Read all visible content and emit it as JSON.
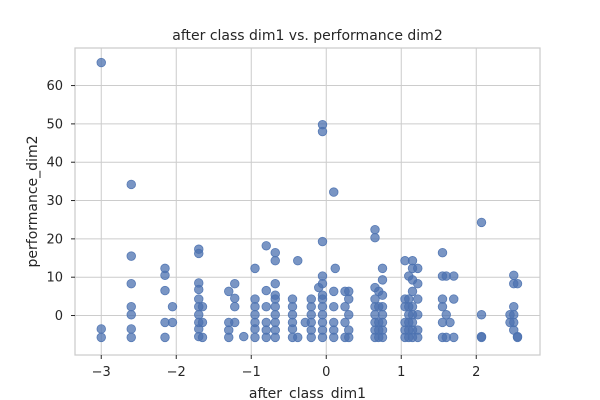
{
  "chart_data": {
    "type": "scatter",
    "title": "after class dim1 vs. performance dim2",
    "xlabel": "after_class_dim1",
    "ylabel": "performance_dim2",
    "xlim": [
      -3.35,
      2.85
    ],
    "ylim": [
      -10.3,
      69.8
    ],
    "xticks": [
      -3,
      -2,
      -1,
      0,
      1,
      2
    ],
    "yticks": [
      0,
      10,
      20,
      30,
      40,
      50,
      60
    ],
    "grid": true,
    "color": "#4c72b0",
    "points": [
      [
        -3.0,
        66
      ],
      [
        -3.0,
        -3.5
      ],
      [
        -3.0,
        -5.7
      ],
      [
        -2.6,
        34.2
      ],
      [
        -2.6,
        15.5
      ],
      [
        -2.6,
        8.3
      ],
      [
        -2.6,
        2.3
      ],
      [
        -2.6,
        0.2
      ],
      [
        -2.6,
        -3.5
      ],
      [
        -2.6,
        -5.7
      ],
      [
        -2.15,
        12.3
      ],
      [
        -2.15,
        10.5
      ],
      [
        -2.15,
        6.5
      ],
      [
        -2.15,
        -1.8
      ],
      [
        -2.15,
        -5.7
      ],
      [
        -2.05,
        2.3
      ],
      [
        -2.05,
        -1.8
      ],
      [
        -1.7,
        17.3
      ],
      [
        -1.7,
        16.2
      ],
      [
        -1.7,
        8.5
      ],
      [
        -1.7,
        6.8
      ],
      [
        -1.7,
        4.3
      ],
      [
        -1.7,
        2.3
      ],
      [
        -1.7,
        0.2
      ],
      [
        -1.7,
        -1.8
      ],
      [
        -1.7,
        -3.5
      ],
      [
        -1.7,
        -5.5
      ],
      [
        -1.65,
        2.3
      ],
      [
        -1.65,
        -1.8
      ],
      [
        -1.65,
        -5.7
      ],
      [
        -1.3,
        6.3
      ],
      [
        -1.3,
        -1.8
      ],
      [
        -1.3,
        -3.8
      ],
      [
        -1.3,
        -5.7
      ],
      [
        -1.22,
        8.3
      ],
      [
        -1.22,
        4.5
      ],
      [
        -1.22,
        2.3
      ],
      [
        -1.22,
        -1.8
      ],
      [
        -1.1,
        -5.5
      ],
      [
        -0.95,
        12.3
      ],
      [
        -0.95,
        4.3
      ],
      [
        -0.95,
        2.3
      ],
      [
        -0.95,
        0.2
      ],
      [
        -0.95,
        -1.8
      ],
      [
        -0.95,
        -3.5
      ],
      [
        -0.95,
        -5.7
      ],
      [
        -0.8,
        18.2
      ],
      [
        -0.8,
        6.5
      ],
      [
        -0.8,
        2.3
      ],
      [
        -0.8,
        -1.8
      ],
      [
        -0.8,
        -3.8
      ],
      [
        -0.8,
        -5.7
      ],
      [
        -0.68,
        16.4
      ],
      [
        -0.68,
        14.3
      ],
      [
        -0.68,
        8.3
      ],
      [
        -0.68,
        5.3
      ],
      [
        -0.68,
        4.3
      ],
      [
        -0.68,
        2.3
      ],
      [
        -0.68,
        0.2
      ],
      [
        -0.68,
        -1.8
      ],
      [
        -0.68,
        -3.8
      ],
      [
        -0.68,
        -5.7
      ],
      [
        -0.45,
        4.3
      ],
      [
        -0.45,
        2.3
      ],
      [
        -0.45,
        0.2
      ],
      [
        -0.45,
        -1.8
      ],
      [
        -0.45,
        -3.5
      ],
      [
        -0.45,
        -5.7
      ],
      [
        -0.38,
        14.3
      ],
      [
        -0.38,
        -5.7
      ],
      [
        -0.28,
        -1.8
      ],
      [
        -0.2,
        4.3
      ],
      [
        -0.2,
        2.3
      ],
      [
        -0.2,
        0.2
      ],
      [
        -0.2,
        -1.8
      ],
      [
        -0.2,
        -3.8
      ],
      [
        -0.2,
        -5.7
      ],
      [
        -0.1,
        7.3
      ],
      [
        -0.05,
        49.8
      ],
      [
        -0.05,
        48
      ],
      [
        -0.05,
        19.3
      ],
      [
        -0.05,
        10.3
      ],
      [
        -0.05,
        8.3
      ],
      [
        -0.05,
        5.3
      ],
      [
        -0.05,
        4.3
      ],
      [
        -0.05,
        2.3
      ],
      [
        -0.05,
        0.2
      ],
      [
        -0.05,
        -1.8
      ],
      [
        -0.05,
        -3.8
      ],
      [
        -0.05,
        -5.7
      ],
      [
        0.1,
        32.2
      ],
      [
        0.1,
        6.3
      ],
      [
        0.1,
        2.3
      ],
      [
        0.1,
        -1.8
      ],
      [
        0.1,
        -3.8
      ],
      [
        0.1,
        -5.7
      ],
      [
        0.12,
        12.3
      ],
      [
        0.25,
        6.3
      ],
      [
        0.25,
        2.3
      ],
      [
        0.25,
        -1.8
      ],
      [
        0.25,
        -5.7
      ],
      [
        0.3,
        6.3
      ],
      [
        0.3,
        4.3
      ],
      [
        0.3,
        0.2
      ],
      [
        0.3,
        -3.8
      ],
      [
        0.3,
        -5.7
      ],
      [
        0.65,
        22.4
      ],
      [
        0.65,
        20.3
      ],
      [
        0.65,
        7.3
      ],
      [
        0.65,
        4.3
      ],
      [
        0.65,
        2.3
      ],
      [
        0.65,
        0.2
      ],
      [
        0.65,
        -1.8
      ],
      [
        0.65,
        -3.8
      ],
      [
        0.65,
        -5.7
      ],
      [
        0.7,
        6.3
      ],
      [
        0.7,
        2.3
      ],
      [
        0.7,
        -1.8
      ],
      [
        0.7,
        -3.8
      ],
      [
        0.7,
        -5.7
      ],
      [
        0.75,
        12.3
      ],
      [
        0.75,
        9.3
      ],
      [
        0.75,
        5.3
      ],
      [
        0.75,
        2.3
      ],
      [
        0.75,
        0.2
      ],
      [
        0.75,
        -1.8
      ],
      [
        0.75,
        -3.8
      ],
      [
        0.75,
        -5.7
      ],
      [
        1.05,
        14.3
      ],
      [
        1.05,
        4.3
      ],
      [
        1.05,
        2.3
      ],
      [
        1.05,
        -1.8
      ],
      [
        1.05,
        -3.8
      ],
      [
        1.05,
        -5.7
      ],
      [
        1.1,
        10.3
      ],
      [
        1.1,
        4.3
      ],
      [
        1.1,
        2.3
      ],
      [
        1.1,
        0.2
      ],
      [
        1.1,
        -1.8
      ],
      [
        1.1,
        -3.8
      ],
      [
        1.1,
        -5.7
      ],
      [
        1.15,
        14.3
      ],
      [
        1.15,
        12.3
      ],
      [
        1.15,
        9.3
      ],
      [
        1.15,
        6.3
      ],
      [
        1.15,
        2.3
      ],
      [
        1.15,
        0.2
      ],
      [
        1.15,
        -1.8
      ],
      [
        1.15,
        -3.8
      ],
      [
        1.15,
        -5.7
      ],
      [
        1.22,
        12.3
      ],
      [
        1.22,
        8.3
      ],
      [
        1.22,
        4.3
      ],
      [
        1.22,
        0.2
      ],
      [
        1.22,
        -3.8
      ],
      [
        1.22,
        -5.7
      ],
      [
        1.55,
        16.4
      ],
      [
        1.55,
        10.3
      ],
      [
        1.55,
        4.3
      ],
      [
        1.55,
        2.3
      ],
      [
        1.55,
        -1.8
      ],
      [
        1.55,
        -5.7
      ],
      [
        1.6,
        10.3
      ],
      [
        1.6,
        0.2
      ],
      [
        1.6,
        -5.7
      ],
      [
        1.65,
        -1.8
      ],
      [
        1.7,
        10.3
      ],
      [
        1.7,
        4.3
      ],
      [
        1.7,
        -5.7
      ],
      [
        2.07,
        24.3
      ],
      [
        2.07,
        0.2
      ],
      [
        2.07,
        -5.5
      ],
      [
        2.07,
        -5.7
      ],
      [
        2.45,
        0.2
      ],
      [
        2.45,
        -1.8
      ],
      [
        2.5,
        10.5
      ],
      [
        2.5,
        8.3
      ],
      [
        2.5,
        2.3
      ],
      [
        2.5,
        0.2
      ],
      [
        2.5,
        -1.8
      ],
      [
        2.5,
        -3.8
      ],
      [
        2.55,
        8.3
      ],
      [
        2.55,
        -5.5
      ],
      [
        2.55,
        -5.7
      ]
    ]
  }
}
